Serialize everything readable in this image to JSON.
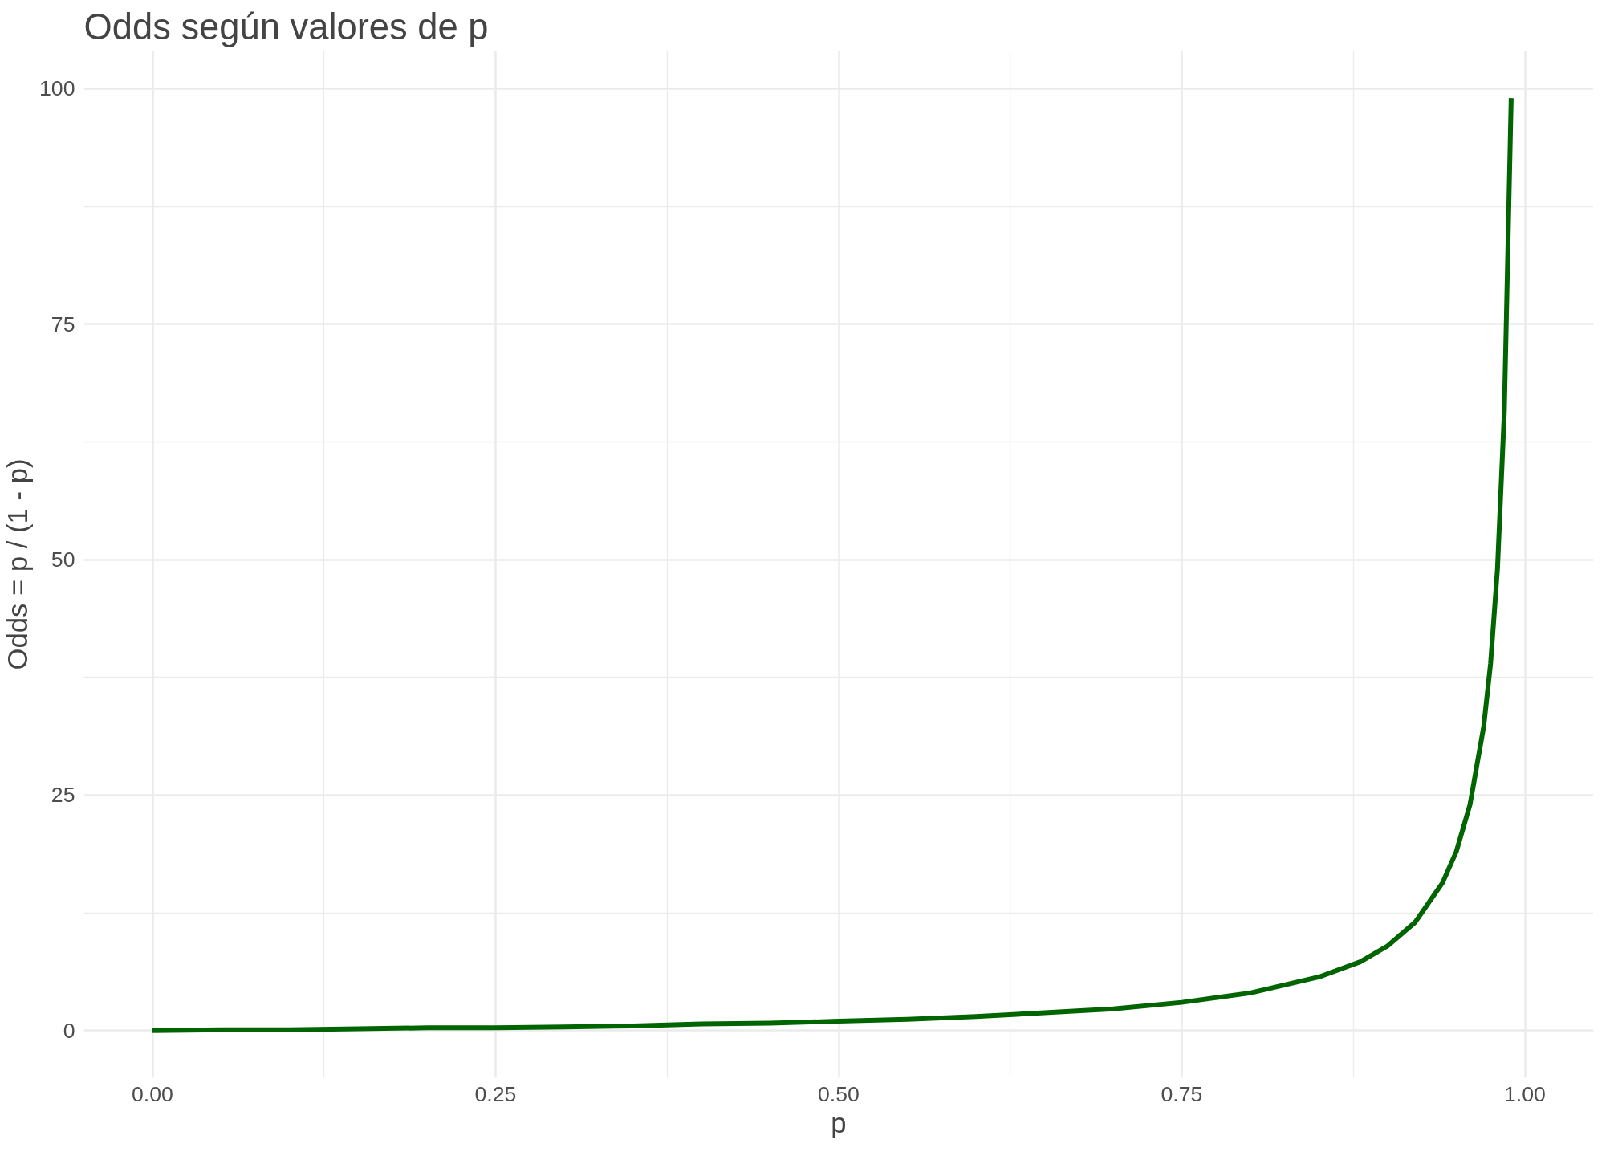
{
  "chart_data": {
    "type": "line",
    "title": "Odds según valores de p",
    "xlabel": "p",
    "ylabel": "Odds = p / (1 - p)",
    "x": [
      0,
      0.05,
      0.1,
      0.15,
      0.2,
      0.25,
      0.3,
      0.35,
      0.4,
      0.45,
      0.5,
      0.55,
      0.6,
      0.65,
      0.7,
      0.75,
      0.8,
      0.85,
      0.88,
      0.9,
      0.92,
      0.94,
      0.95,
      0.96,
      0.97,
      0.975,
      0.98,
      0.985,
      0.99
    ],
    "series": [
      {
        "color": "#006400",
        "values": [
          0,
          0.1,
          0.1,
          0.2,
          0.3,
          0.3,
          0.4,
          0.5,
          0.7,
          0.8,
          1,
          1.2,
          1.5,
          1.9,
          2.3,
          3,
          4,
          5.7,
          7.3,
          9,
          11.5,
          15.7,
          19,
          24,
          32.3,
          39,
          49,
          65.7,
          99
        ]
      }
    ],
    "xlim": [
      -0.05,
      1.05
    ],
    "ylim": [
      -5,
      104
    ],
    "xticks": [
      {
        "value": 0,
        "label": "0.00"
      },
      {
        "value": 0.125,
        "label": null
      },
      {
        "value": 0.25,
        "label": "0.25"
      },
      {
        "value": 0.375,
        "label": null
      },
      {
        "value": 0.5,
        "label": "0.50"
      },
      {
        "value": 0.625,
        "label": null
      },
      {
        "value": 0.75,
        "label": "0.75"
      },
      {
        "value": 0.875,
        "label": null
      },
      {
        "value": 1,
        "label": "1.00"
      }
    ],
    "yticks": [
      0,
      {
        "value": 12.5,
        "label": null
      },
      25,
      {
        "value": 37.5,
        "label": null
      },
      50,
      {
        "value": 62.5,
        "label": null
      },
      75,
      {
        "value": 87.5,
        "label": null
      },
      100
    ],
    "grid": true,
    "line_style": "solid",
    "marker": "none"
  }
}
